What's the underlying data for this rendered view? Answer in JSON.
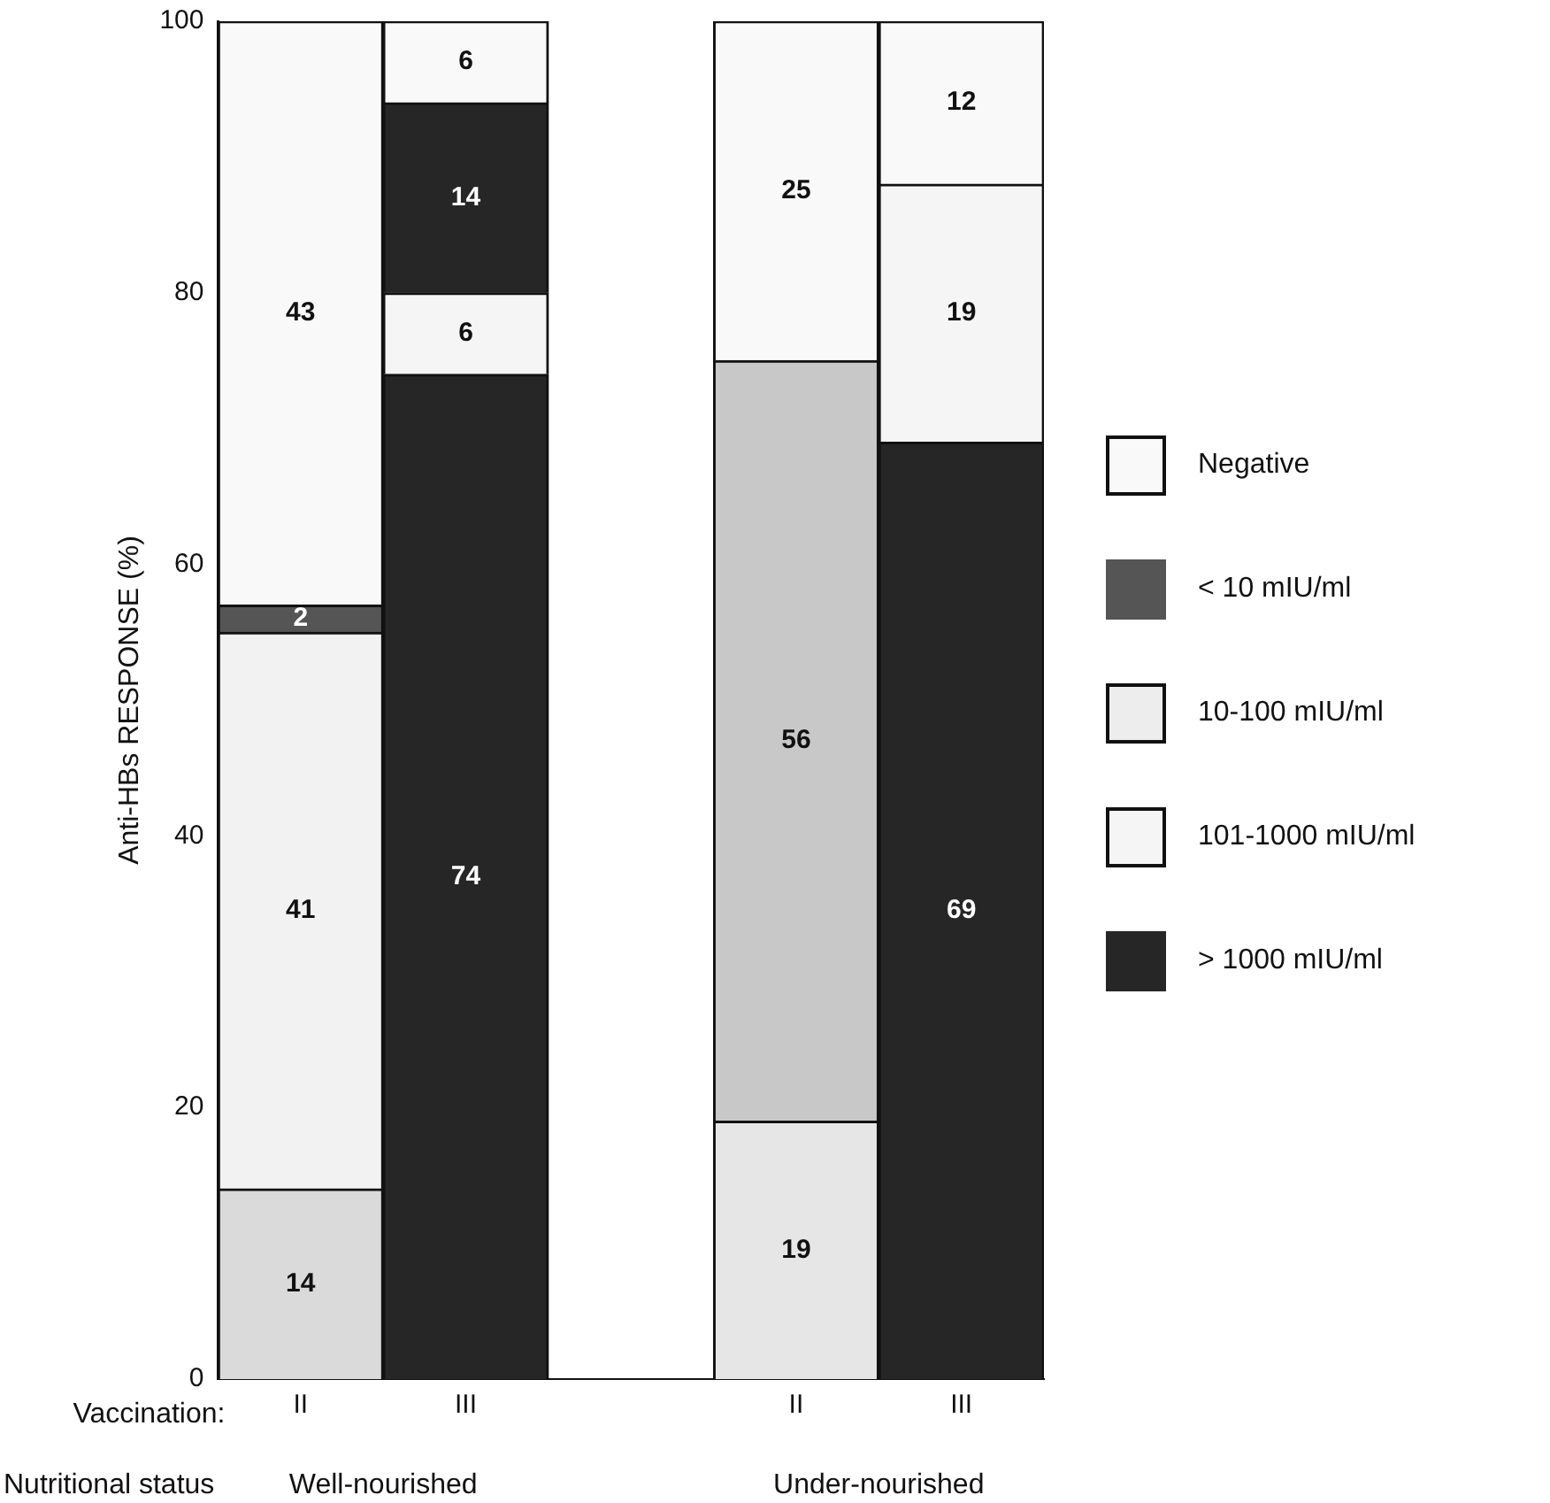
{
  "chart_data": {
    "type": "bar",
    "stacked": true,
    "ylabel": "Anti-HBs RESPONSE (%)",
    "categories": [
      "II",
      "III",
      null,
      "II",
      "III"
    ],
    "series": [
      {
        "name": "> 1000 mIU/ml",
        "color": "#262626",
        "values": [
          null,
          74,
          null,
          null,
          69
        ]
      },
      {
        "name": "101-1000 mIU/ml",
        "color": "#f5f5f5",
        "colors": [
          "#dadada",
          "#f5f5f5",
          "#f5f5f5",
          "#e6e6e6",
          "#f5f5f5"
        ],
        "values": [
          14,
          6,
          null,
          19,
          19
        ]
      },
      {
        "name": "10-100 mIU/ml",
        "color": "#ededed",
        "colors": [
          "#f2f2f2",
          "#ededed",
          "#ededed",
          "#c8c8c8",
          "#ededed"
        ],
        "values": [
          41,
          null,
          null,
          56,
          null
        ]
      },
      {
        "name": "< 10 mIU/ml",
        "color": "#555555",
        "values": [
          2,
          null,
          null,
          null,
          null
        ]
      },
      {
        "color": "#262626",
        "values": [
          null,
          14,
          null,
          null,
          null
        ]
      },
      {
        "name": "Negative",
        "color": "#f9f9f9",
        "values": [
          43,
          6,
          null,
          25,
          12
        ]
      }
    ],
    "ylim": [
      0,
      100
    ],
    "yticks": [
      0,
      20,
      40,
      60,
      80,
      100
    ],
    "grid": false,
    "legend": "right",
    "data_labels": true,
    "annotations": [
      "Vaccination:",
      "Nutritional status",
      "Well-nourished",
      "Under-nourished"
    ]
  }
}
